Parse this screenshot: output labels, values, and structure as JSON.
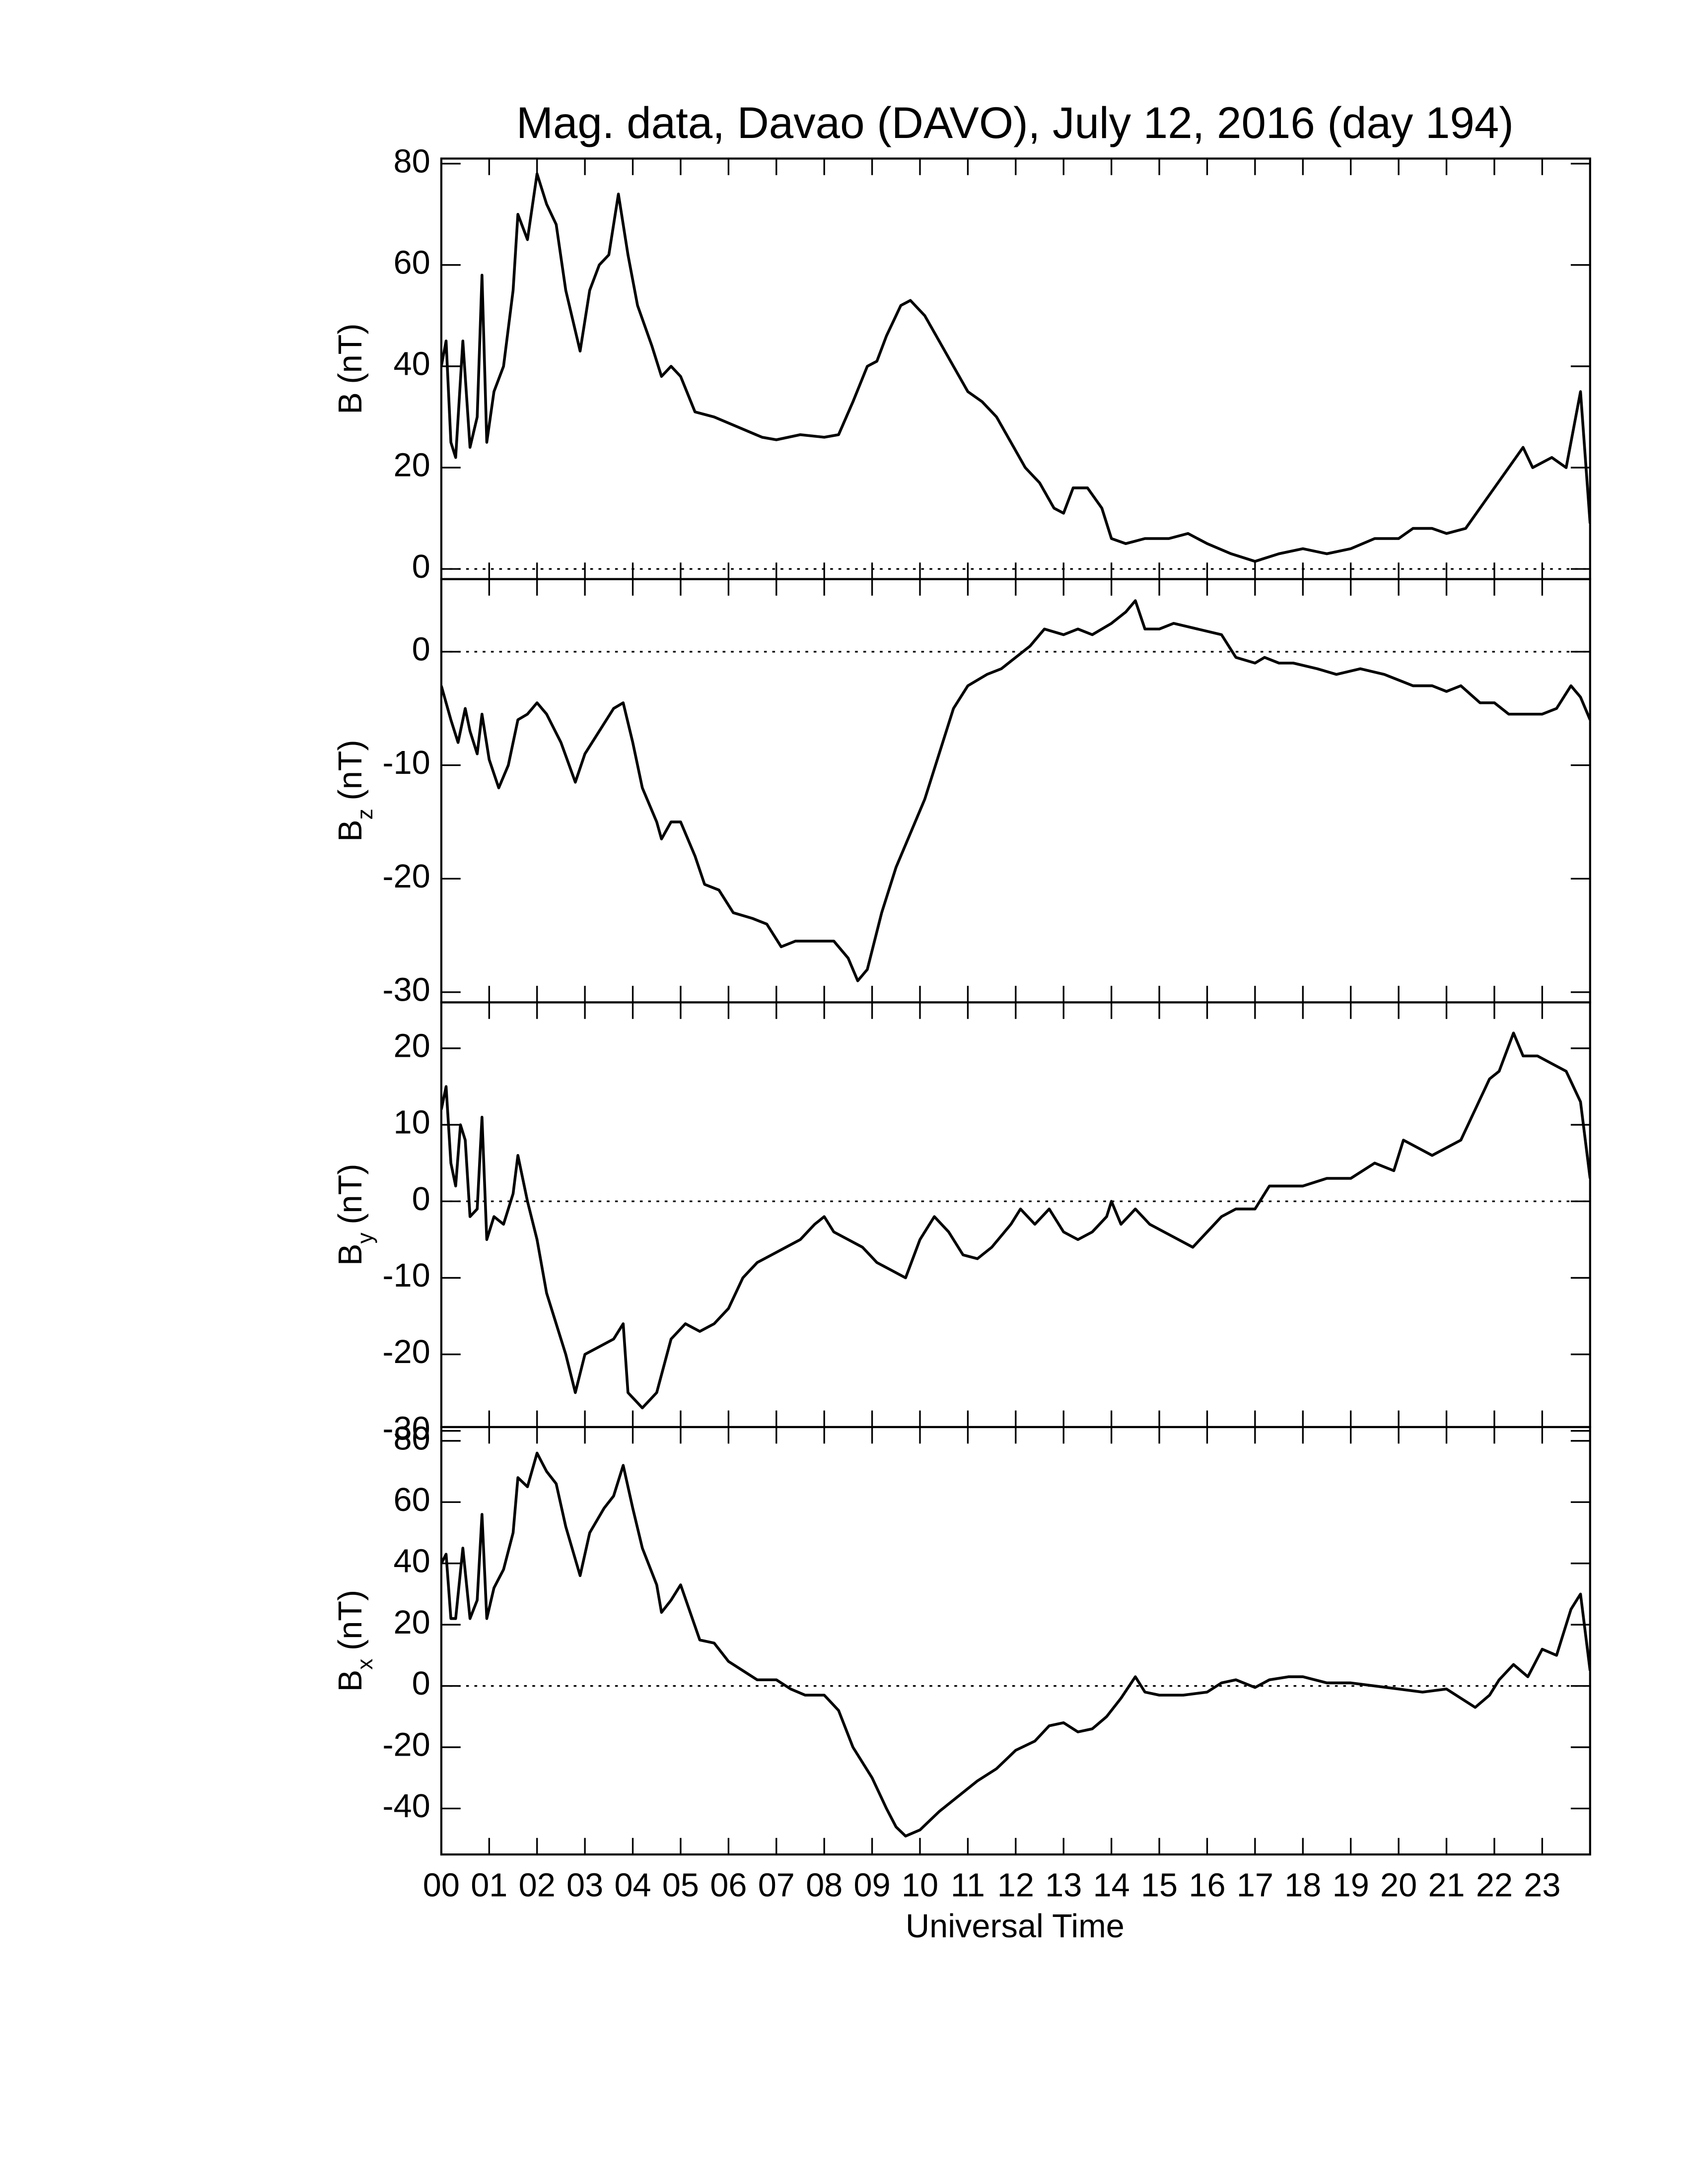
{
  "chart_data": [
    {
      "type": "line",
      "title": "Mag. data, Davao (DAVO), July 12, 2016 (day 194)",
      "ylabel": "B",
      "ylabel_unit": "(nT)",
      "color": "#000000",
      "xlim": [
        0,
        24
      ],
      "xticks": [
        0,
        1,
        2,
        3,
        4,
        5,
        6,
        7,
        8,
        9,
        10,
        11,
        12,
        13,
        14,
        15,
        16,
        17,
        18,
        19,
        20,
        21,
        22,
        23
      ],
      "ylim": [
        -2,
        81
      ],
      "yticks": [
        0,
        20,
        40,
        60,
        80
      ],
      "hlines": [
        0
      ],
      "x": [
        0,
        0.1,
        0.2,
        0.3,
        0.45,
        0.6,
        0.75,
        0.85,
        0.95,
        1.1,
        1.3,
        1.5,
        1.6,
        1.8,
        2.0,
        2.2,
        2.4,
        2.6,
        2.9,
        3.1,
        3.3,
        3.5,
        3.7,
        3.9,
        4.1,
        4.4,
        4.6,
        4.8,
        5.0,
        5.3,
        5.7,
        6.2,
        6.7,
        7.0,
        7.5,
        8.0,
        8.3,
        8.6,
        8.9,
        9.1,
        9.3,
        9.6,
        9.8,
        10.1,
        10.4,
        10.7,
        11.0,
        11.3,
        11.6,
        11.9,
        12.2,
        12.5,
        12.8,
        13.0,
        13.2,
        13.5,
        13.8,
        14.0,
        14.3,
        14.7,
        15.2,
        15.6,
        16.0,
        16.5,
        17.0,
        17.5,
        18.0,
        18.5,
        19.0,
        19.5,
        20.0,
        20.3,
        20.7,
        21.0,
        21.4,
        21.7,
        22.0,
        22.3,
        22.6,
        22.8,
        23.2,
        23.5,
        23.8,
        24.0
      ],
      "values": [
        40,
        45,
        25,
        22,
        45,
        24,
        30,
        58,
        25,
        35,
        40,
        55,
        70,
        65,
        78,
        72,
        68,
        55,
        43,
        55,
        60,
        62,
        74,
        62,
        52,
        44,
        38,
        40,
        38,
        31,
        30,
        28,
        26,
        25.5,
        26.5,
        26,
        26.5,
        33,
        40,
        41,
        46,
        52,
        53,
        50,
        45,
        40,
        35,
        33,
        30,
        25,
        20,
        17,
        12,
        11,
        16,
        16,
        12,
        6,
        5,
        6,
        6,
        7,
        5,
        3,
        1.5,
        3,
        4,
        3,
        4,
        6,
        6,
        8,
        8,
        7,
        8,
        12,
        16,
        20,
        24,
        20,
        22,
        20,
        35,
        9
      ]
    },
    {
      "type": "line",
      "ylabel": "B",
      "ylabel_sub": "z",
      "ylabel_unit": "(nT)",
      "color": "#000000",
      "xlim": [
        0,
        24
      ],
      "xticks": [
        0,
        1,
        2,
        3,
        4,
        5,
        6,
        7,
        8,
        9,
        10,
        11,
        12,
        13,
        14,
        15,
        16,
        17,
        18,
        19,
        20,
        21,
        22,
        23
      ],
      "ylim": [
        -30.9,
        6.4
      ],
      "yticks": [
        -30,
        -20,
        -10,
        0
      ],
      "hlines": [
        0
      ],
      "x": [
        0,
        0.2,
        0.35,
        0.5,
        0.6,
        0.75,
        0.85,
        1.0,
        1.2,
        1.4,
        1.6,
        1.8,
        2.0,
        2.2,
        2.5,
        2.8,
        3.0,
        3.3,
        3.6,
        3.8,
        4.0,
        4.2,
        4.5,
        4.6,
        4.8,
        5.0,
        5.3,
        5.5,
        5.8,
        6.1,
        6.5,
        6.8,
        7.1,
        7.4,
        7.8,
        8.2,
        8.5,
        8.7,
        8.9,
        9.2,
        9.5,
        9.8,
        10.1,
        10.4,
        10.7,
        11.0,
        11.4,
        11.7,
        12.0,
        12.3,
        12.6,
        13.0,
        13.3,
        13.6,
        14.0,
        14.3,
        14.5,
        14.7,
        15.0,
        15.3,
        15.8,
        16.3,
        16.6,
        17.0,
        17.2,
        17.5,
        17.8,
        18.3,
        18.7,
        19.2,
        19.7,
        20.0,
        20.3,
        20.7,
        21.0,
        21.3,
        21.7,
        22.0,
        22.3,
        22.7,
        23.0,
        23.3,
        23.6,
        23.8,
        24.0
      ],
      "values": [
        -3,
        -6,
        -8,
        -5,
        -7,
        -9,
        -5.5,
        -9.5,
        -12,
        -10,
        -6,
        -5.5,
        -4.5,
        -5.5,
        -8,
        -11.5,
        -9,
        -7,
        -5,
        -4.5,
        -8,
        -12,
        -15,
        -16.5,
        -15,
        -15,
        -18,
        -20.5,
        -21,
        -23,
        -23.5,
        -24,
        -26,
        -25.5,
        -25.5,
        -25.5,
        -27,
        -29,
        -28,
        -23,
        -19,
        -16,
        -13,
        -9,
        -5,
        -3,
        -2,
        -1.5,
        -0.5,
        0.5,
        2,
        1.5,
        2,
        1.5,
        2.5,
        3.5,
        4.5,
        2,
        2,
        2.5,
        2,
        1.5,
        -0.5,
        -1,
        -0.5,
        -1,
        -1,
        -1.5,
        -2,
        -1.5,
        -2,
        -2.5,
        -3,
        -3,
        -3.5,
        -3,
        -4.5,
        -4.5,
        -5.5,
        -5.5,
        -5.5,
        -5,
        -3,
        -4,
        -6
      ]
    },
    {
      "type": "line",
      "ylabel": "B",
      "ylabel_sub": "y",
      "ylabel_unit": "(nT)",
      "color": "#000000",
      "xlim": [
        0,
        24
      ],
      "xticks": [
        0,
        1,
        2,
        3,
        4,
        5,
        6,
        7,
        8,
        9,
        10,
        11,
        12,
        13,
        14,
        15,
        16,
        17,
        18,
        19,
        20,
        21,
        22,
        23
      ],
      "ylim": [
        -29.5,
        26
      ],
      "yticks": [
        -30,
        -20,
        -10,
        0,
        10,
        20
      ],
      "hlines": [
        0
      ],
      "x": [
        0,
        0.1,
        0.2,
        0.3,
        0.4,
        0.5,
        0.6,
        0.75,
        0.85,
        0.95,
        1.1,
        1.3,
        1.5,
        1.6,
        1.8,
        2.0,
        2.2,
        2.4,
        2.6,
        2.8,
        3.0,
        3.3,
        3.6,
        3.8,
        3.9,
        4.2,
        4.5,
        4.8,
        5.1,
        5.4,
        5.7,
        6.0,
        6.3,
        6.6,
        6.9,
        7.2,
        7.5,
        7.8,
        8.0,
        8.2,
        8.5,
        8.8,
        9.1,
        9.4,
        9.7,
        10.0,
        10.3,
        10.6,
        10.9,
        11.2,
        11.5,
        11.9,
        12.1,
        12.4,
        12.7,
        13.0,
        13.3,
        13.6,
        13.9,
        14.0,
        14.2,
        14.5,
        14.8,
        15.1,
        15.4,
        15.7,
        16.0,
        16.3,
        16.6,
        17.0,
        17.3,
        17.6,
        18.0,
        18.5,
        19.0,
        19.5,
        19.9,
        20.1,
        20.4,
        20.7,
        21.0,
        21.3,
        21.6,
        21.9,
        22.1,
        22.4,
        22.6,
        22.9,
        23.2,
        23.5,
        23.8,
        24.0
      ],
      "values": [
        12,
        15,
        5,
        2,
        10,
        8,
        -2,
        -1,
        11,
        -5,
        -2,
        -3,
        1,
        6,
        0,
        -5,
        -12,
        -16,
        -20,
        -25,
        -20,
        -19,
        -18,
        -16,
        -25,
        -27,
        -25,
        -18,
        -16,
        -17,
        -16,
        -14,
        -10,
        -8,
        -7,
        -6,
        -5,
        -3,
        -2,
        -4,
        -5,
        -6,
        -8,
        -9,
        -10,
        -5,
        -2,
        -4,
        -7,
        -7.5,
        -6,
        -3,
        -1,
        -3,
        -1,
        -4,
        -5,
        -4,
        -2,
        0,
        -3,
        -1,
        -3,
        -4,
        -5,
        -6,
        -4,
        -2,
        -1,
        -1,
        2,
        2,
        2,
        3,
        3,
        5,
        4,
        8,
        7,
        6,
        7,
        8,
        12,
        16,
        17,
        22,
        19,
        19,
        18,
        17,
        13,
        3
      ]
    },
    {
      "type": "line",
      "ylabel": "B",
      "ylabel_sub": "x",
      "ylabel_unit": "(nT)",
      "color": "#000000",
      "xlabel": "Universal Time",
      "xlim": [
        0,
        24
      ],
      "xticks": [
        {
          "value": 0,
          "label": "00"
        },
        {
          "value": 1,
          "label": "01"
        },
        {
          "value": 2,
          "label": "02"
        },
        {
          "value": 3,
          "label": "03"
        },
        {
          "value": 4,
          "label": "04"
        },
        {
          "value": 5,
          "label": "05"
        },
        {
          "value": 6,
          "label": "06"
        },
        {
          "value": 7,
          "label": "07"
        },
        {
          "value": 8,
          "label": "08"
        },
        {
          "value": 9,
          "label": "09"
        },
        10,
        11,
        12,
        13,
        14,
        15,
        16,
        17,
        18,
        19,
        20,
        21,
        22,
        23
      ],
      "ylim": [
        -55,
        84.5
      ],
      "yticks": [
        -40,
        -20,
        0,
        20,
        40,
        60,
        80
      ],
      "hlines": [
        0
      ],
      "x": [
        0,
        0.1,
        0.2,
        0.3,
        0.45,
        0.6,
        0.75,
        0.85,
        0.95,
        1.1,
        1.3,
        1.5,
        1.6,
        1.8,
        2.0,
        2.2,
        2.4,
        2.6,
        2.9,
        3.1,
        3.4,
        3.6,
        3.8,
        4.0,
        4.2,
        4.5,
        4.6,
        4.8,
        5.0,
        5.2,
        5.4,
        5.7,
        6.0,
        6.3,
        6.6,
        7.0,
        7.3,
        7.6,
        8.0,
        8.3,
        8.6,
        9.0,
        9.3,
        9.5,
        9.7,
        10.0,
        10.4,
        10.8,
        11.2,
        11.6,
        12.0,
        12.4,
        12.7,
        13.0,
        13.3,
        13.6,
        13.9,
        14.2,
        14.5,
        14.7,
        15.0,
        15.5,
        16.0,
        16.3,
        16.6,
        17.0,
        17.3,
        17.7,
        18.0,
        18.5,
        19.0,
        19.5,
        20.0,
        20.5,
        21.0,
        21.3,
        21.6,
        21.9,
        22.1,
        22.4,
        22.7,
        23.0,
        23.3,
        23.6,
        23.8,
        24.0
      ],
      "values": [
        40,
        43,
        22,
        22,
        45,
        22,
        28,
        56,
        22,
        32,
        38,
        50,
        68,
        65,
        76,
        70,
        66,
        52,
        36,
        50,
        58,
        62,
        72,
        58,
        45,
        33,
        24,
        28,
        33,
        24,
        15,
        14,
        8,
        5,
        2,
        2,
        -1,
        -3,
        -3,
        -8,
        -20,
        -30,
        -40,
        -46,
        -49,
        -47,
        -41,
        -36,
        -31,
        -27,
        -21,
        -18,
        -13,
        -12,
        -15,
        -14,
        -10,
        -4,
        3,
        -2,
        -3,
        -3,
        -2,
        1,
        2,
        -0.5,
        2,
        3,
        3,
        1,
        1,
        0,
        -1,
        -2,
        -1,
        -4,
        -7,
        -3,
        2,
        7,
        3,
        12,
        10,
        25,
        30,
        5
      ]
    }
  ]
}
